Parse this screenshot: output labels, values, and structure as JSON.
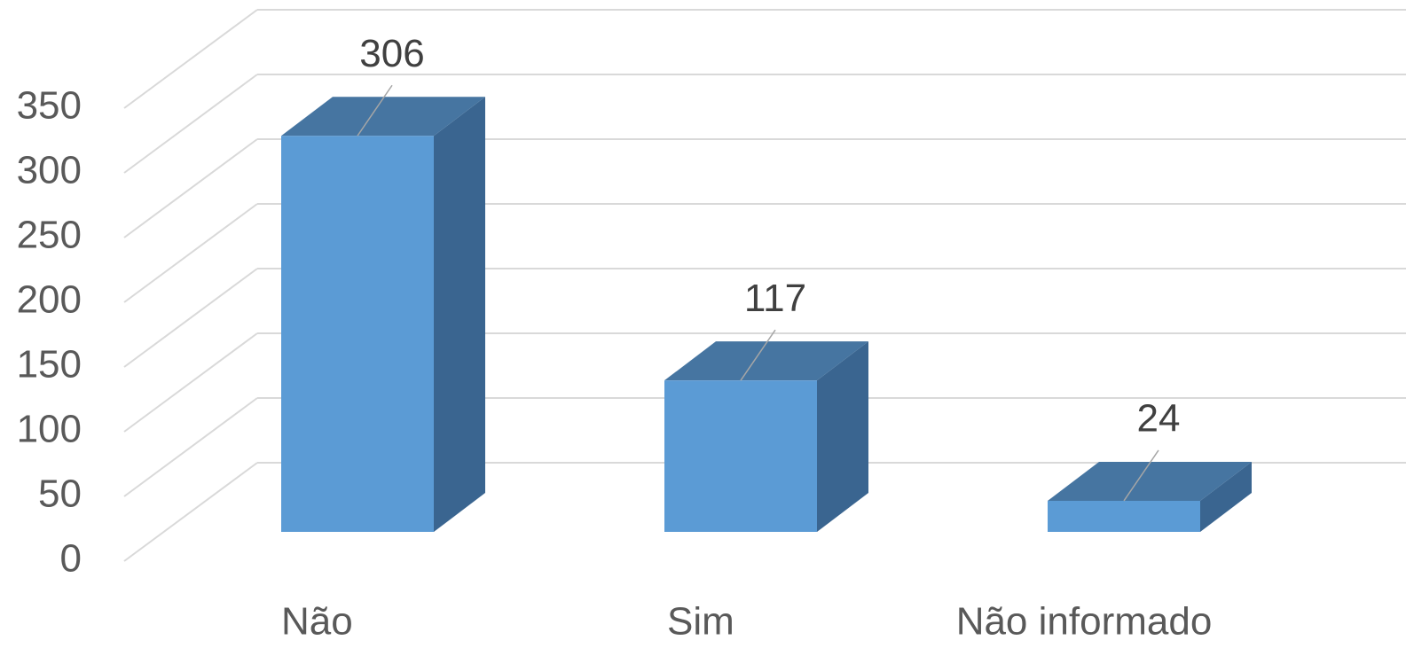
{
  "chart_data": {
    "type": "bar3d",
    "categories": [
      "Não",
      "Sim",
      "Não informado"
    ],
    "values": [
      306,
      117,
      24
    ],
    "color": "#5b9bd5",
    "ylim": [
      0,
      350
    ],
    "yticks": [
      0,
      50,
      100,
      150,
      200,
      250,
      300,
      350
    ],
    "grid": true
  }
}
